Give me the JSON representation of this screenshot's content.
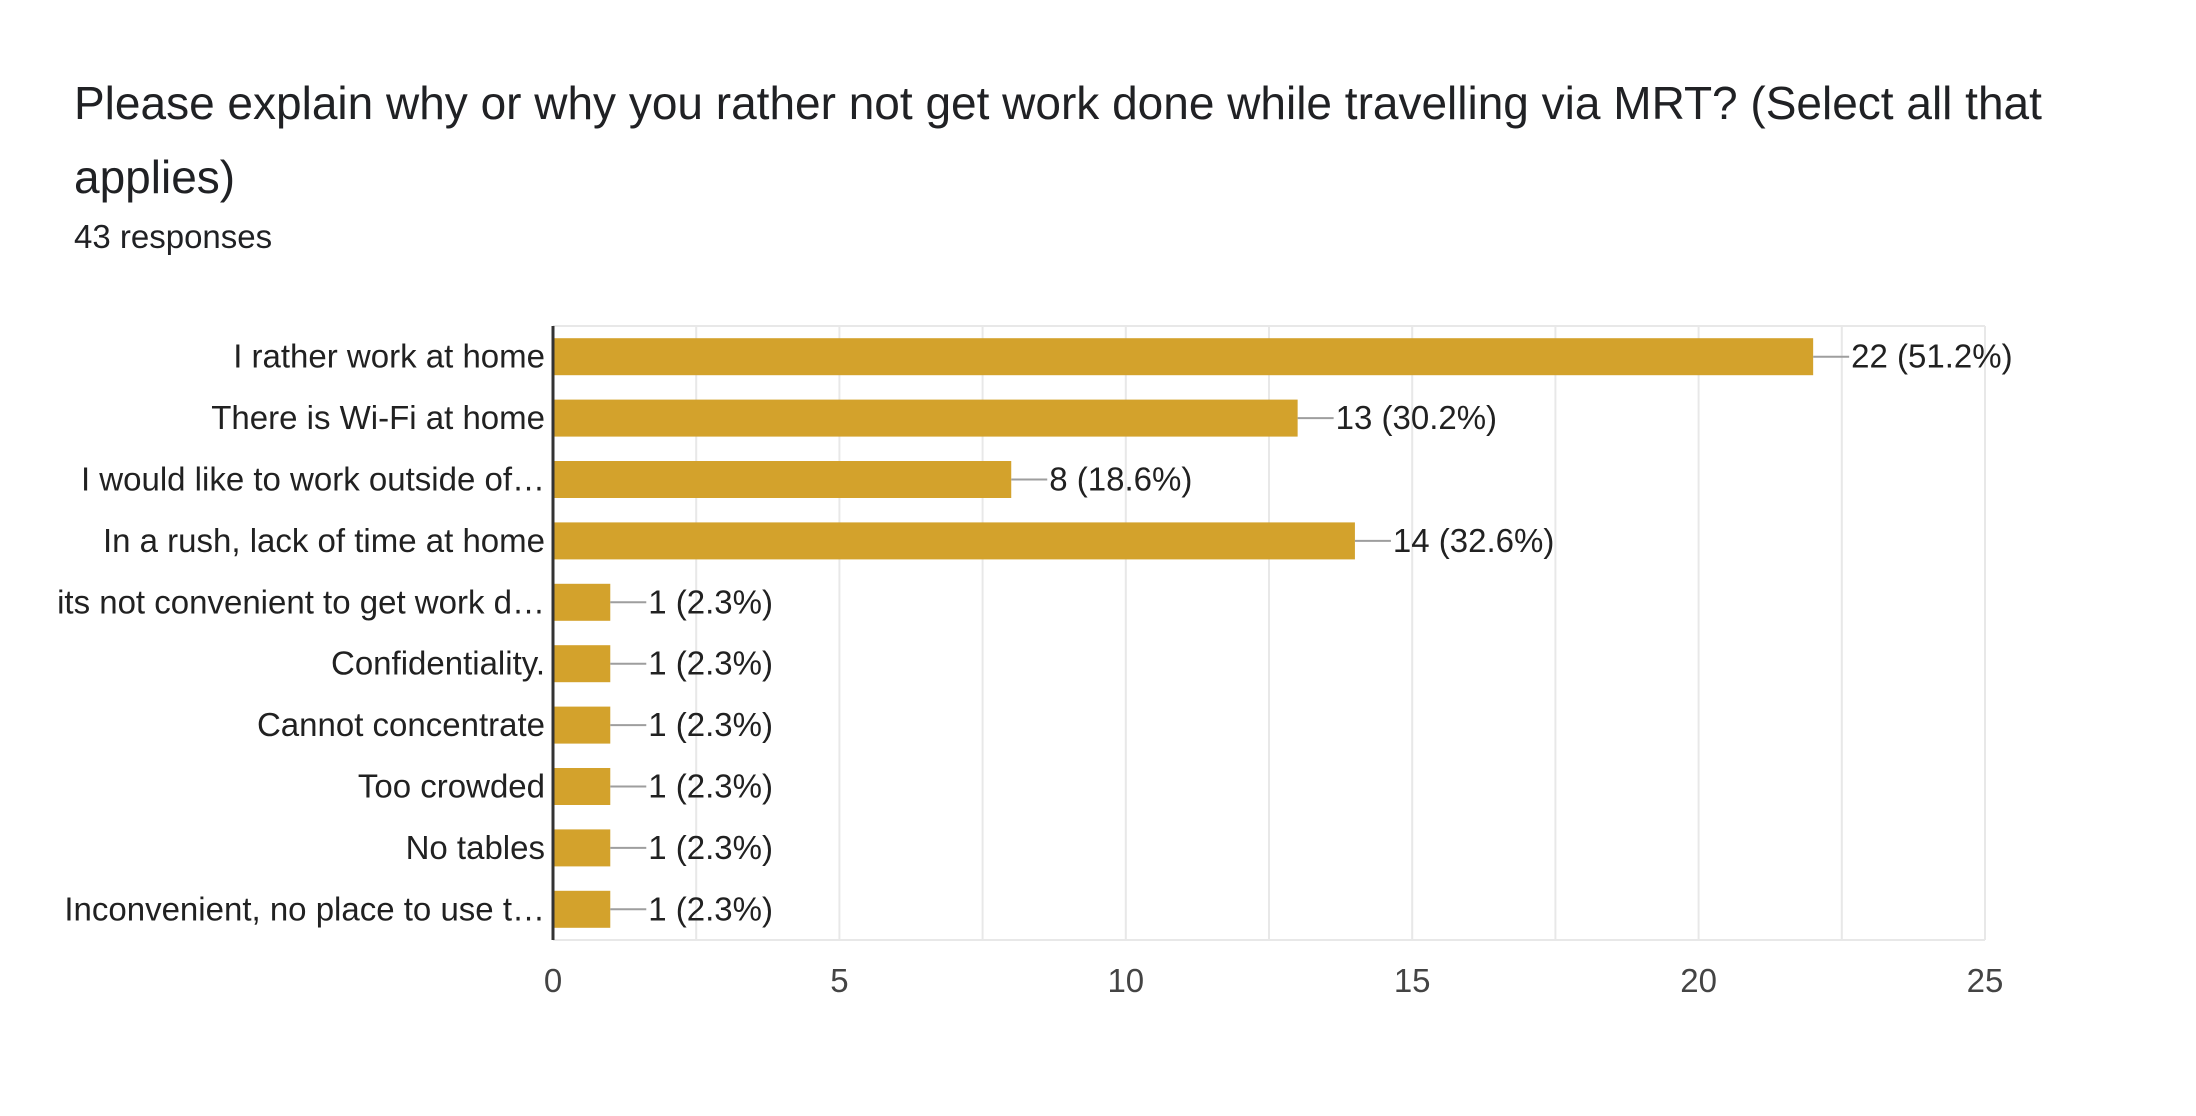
{
  "question": {
    "title": "Please explain why or why you rather not get work done while travelling via MRT? (Select all that applies)",
    "responses": "43 responses"
  },
  "colors": {
    "bar": "#d3a22c",
    "grid": "#e8e8e8",
    "axis": "#333333",
    "leader": "#9e9e9e",
    "text": "#212121"
  },
  "chart_data": {
    "type": "bar",
    "orientation": "horizontal",
    "title": "Please explain why or why you rather not get work done while travelling via MRT? (Select all that applies)",
    "categories": [
      "I rather work at home",
      "There is Wi-Fi at home",
      "I would like to work outside of…",
      "In a rush, lack of time at home",
      "its not convenient to get work d…",
      "Confidentiality.",
      "Cannot concentrate",
      "Too crowded",
      "No tables",
      "Inconvenient, no place to use t…"
    ],
    "values": [
      22,
      13,
      8,
      14,
      1,
      1,
      1,
      1,
      1,
      1
    ],
    "data_labels": [
      "22 (51.2%)",
      "13 (30.2%)",
      "8 (18.6%)",
      "14 (32.6%)",
      "1 (2.3%)",
      "1 (2.3%)",
      "1 (2.3%)",
      "1 (2.3%)",
      "1 (2.3%)",
      "1 (2.3%)"
    ],
    "xlim": [
      0,
      25
    ],
    "xticks": [
      0,
      5,
      10,
      15,
      20,
      25
    ],
    "minor_grid_step": 2.5,
    "xlabel": "",
    "ylabel": "",
    "grid": true
  }
}
